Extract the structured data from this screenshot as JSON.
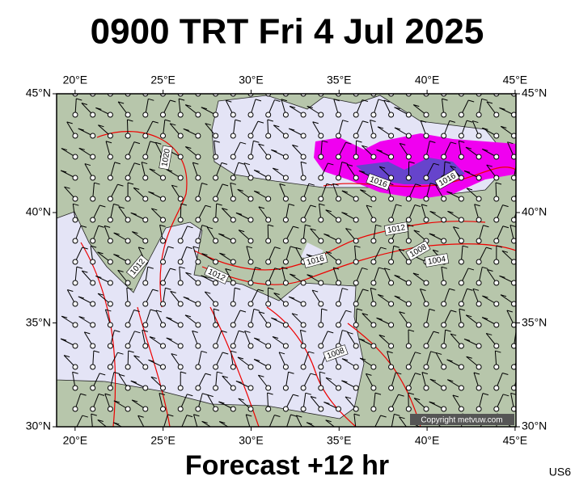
{
  "header": {
    "title": "0900 TRT Fri 4 Jul 2025"
  },
  "footer": {
    "caption": "Forecast +12 hr",
    "code": "US6"
  },
  "map": {
    "xlim": [
      18.95,
      45.05
    ],
    "ylim": [
      30,
      45
    ],
    "lon_ticks": [
      {
        "value": 20,
        "label": "20°E"
      },
      {
        "value": 25,
        "label": "25°E"
      },
      {
        "value": 30,
        "label": "30°E"
      },
      {
        "value": 35,
        "label": "35°E"
      },
      {
        "value": 40,
        "label": "40°E"
      },
      {
        "value": 45,
        "label": "45°E"
      }
    ],
    "lat_ticks": [
      {
        "value": 30,
        "label": "30°N"
      },
      {
        "value": 35,
        "label": "35°N"
      },
      {
        "value": 40,
        "label": "40°N"
      },
      {
        "value": 45,
        "label": "45°N"
      }
    ],
    "isobar_labels": [
      "1020",
      "1016",
      "1016",
      "1012",
      "1008",
      "1004",
      "1016",
      "1012",
      "1012",
      "1008"
    ],
    "copyright": "Copyright metvuw.com"
  }
}
